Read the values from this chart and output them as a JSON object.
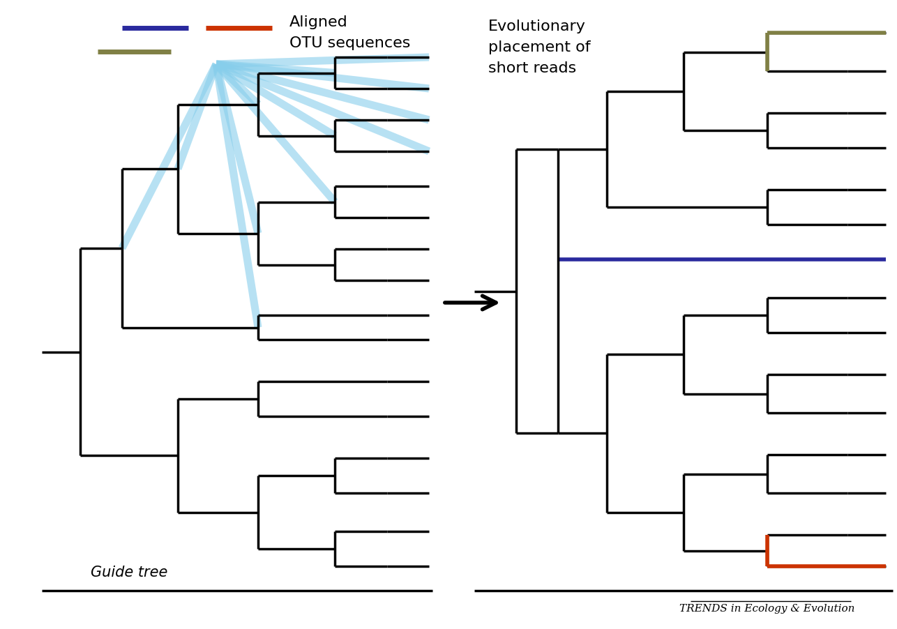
{
  "bg_color": "#ffffff",
  "tree_color": "#000000",
  "light_blue": "#87CEEB",
  "blue_seq": "#2a2a9e",
  "red_seq": "#cc3300",
  "olive_seq": "#808045",
  "guide_tree_label": "Guide tree",
  "left_legend_label1": "Aligned",
  "left_legend_label2": "OTU sequences",
  "right_title_line1": "Evolutionary",
  "right_title_line2": "placement of",
  "right_title_line3": "short reads",
  "footer": "TRENDS in Ecology & Evolution"
}
